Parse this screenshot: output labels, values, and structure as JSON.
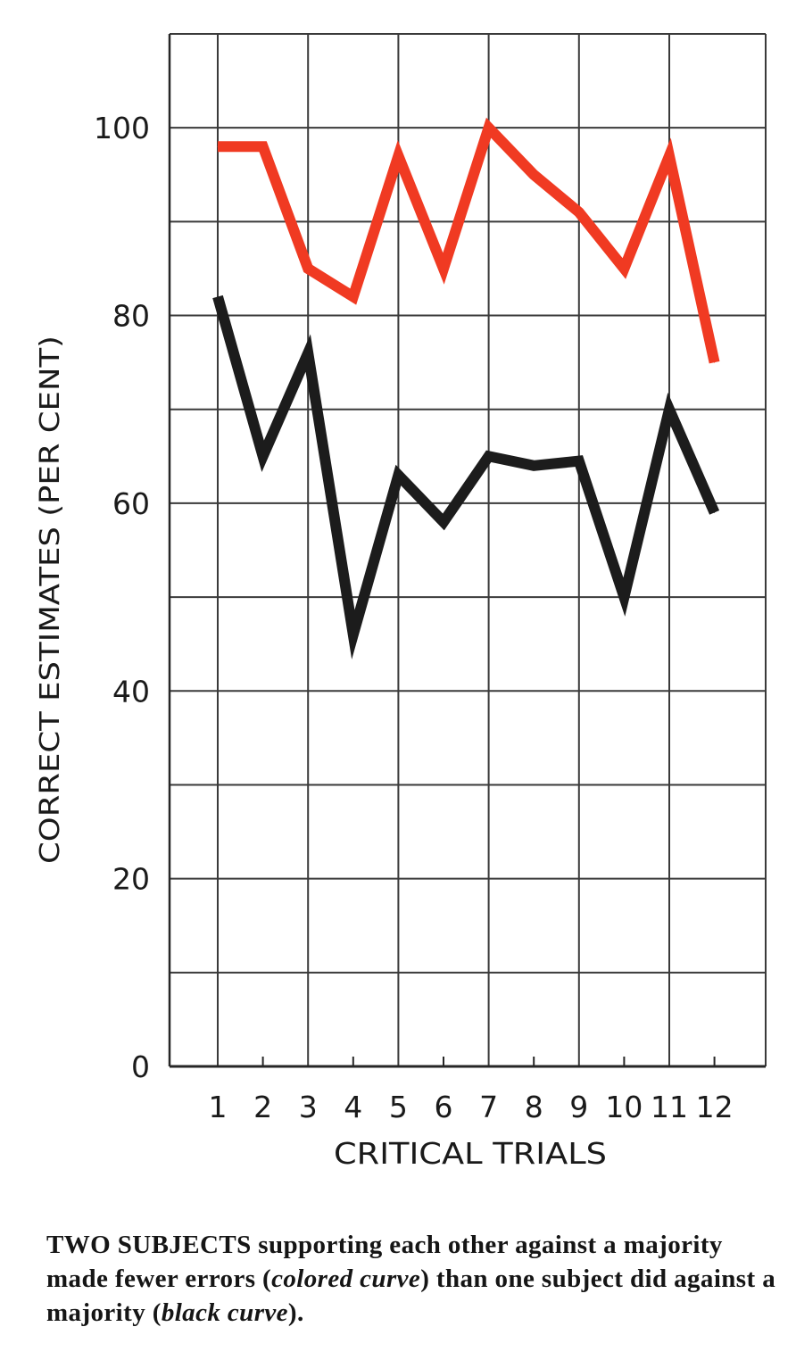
{
  "chart_data": {
    "type": "line",
    "ylabel": "CORRECT ESTIMATES (PER CENT)",
    "xlabel": "CRITICAL TRIALS",
    "x": [
      1,
      2,
      3,
      4,
      5,
      6,
      7,
      8,
      9,
      10,
      11,
      12
    ],
    "x_tick_labels": [
      "1",
      "2",
      "3",
      "4",
      "5",
      "6",
      "7",
      "8",
      "9",
      "10",
      "11",
      "12"
    ],
    "y_tick_labels": [
      "0",
      "20",
      "40",
      "60",
      "80",
      "100"
    ],
    "ylim": [
      0,
      110
    ],
    "grid": true,
    "series": [
      {
        "key": "two-subjects",
        "color": "#f03a22",
        "values": [
          98,
          98,
          85,
          82,
          97,
          85,
          100,
          95,
          91,
          85,
          97,
          75
        ]
      },
      {
        "key": "one-subject",
        "color": "#1c1c1c",
        "values": [
          82,
          65,
          76,
          46,
          63,
          58,
          65,
          64,
          64.5,
          50,
          70,
          59
        ]
      }
    ]
  },
  "caption": {
    "lead": "TWO SUBJECTS",
    "part1": " supporting each other against a majority made fewer errors (",
    "em1": "colored curve",
    "part2": ") than one subject did against a majority (",
    "em2": "black curve",
    "part3": ")."
  }
}
